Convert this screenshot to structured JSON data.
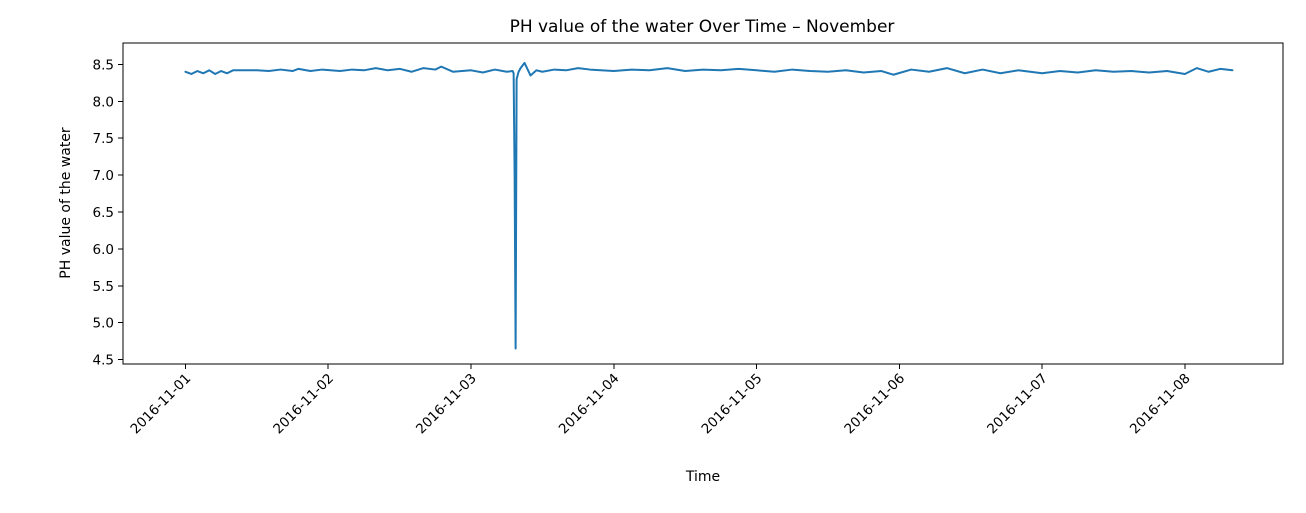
{
  "chart_data": {
    "type": "line",
    "title": "PH value of the water Over Time – November",
    "xlabel": "Time",
    "ylabel": "PH value of the water",
    "x_ticks": [
      "2016-11-01",
      "2016-11-02",
      "2016-11-03",
      "2016-11-04",
      "2016-11-05",
      "2016-11-06",
      "2016-11-07",
      "2016-11-08"
    ],
    "y_ticks": [
      "4.5",
      "5.0",
      "5.5",
      "6.0",
      "6.5",
      "7.0",
      "7.5",
      "8.0",
      "8.5"
    ],
    "xlim": [
      "2016-10-31 13:30",
      "2016-11-08 16:30"
    ],
    "ylim": [
      4.44,
      8.79
    ],
    "grid": false,
    "color": "#1f77b4",
    "series": [
      {
        "x": [
          "2016-11-01 00:00",
          "2016-11-01 01:00",
          "2016-11-01 02:00",
          "2016-11-01 03:00",
          "2016-11-01 04:00",
          "2016-11-01 05:00",
          "2016-11-01 06:00",
          "2016-11-01 07:00",
          "2016-11-01 08:00",
          "2016-11-01 10:00",
          "2016-11-01 12:00",
          "2016-11-01 14:00",
          "2016-11-01 16:00",
          "2016-11-01 18:00",
          "2016-11-01 19:00",
          "2016-11-01 21:00",
          "2016-11-01 23:00",
          "2016-11-02 02:00",
          "2016-11-02 04:00",
          "2016-11-02 06:00",
          "2016-11-02 08:00",
          "2016-11-02 10:00",
          "2016-11-02 12:00",
          "2016-11-02 14:00",
          "2016-11-02 16:00",
          "2016-11-02 18:00",
          "2016-11-02 19:00",
          "2016-11-02 21:00",
          "2016-11-03 00:00",
          "2016-11-03 02:00",
          "2016-11-03 04:00",
          "2016-11-03 06:00",
          "2016-11-03 07:00",
          "2016-11-03 07:10",
          "2016-11-03 07:20",
          "2016-11-03 07:30",
          "2016-11-03 07:40",
          "2016-11-03 08:00",
          "2016-11-03 08:20",
          "2016-11-03 09:00",
          "2016-11-03 10:00",
          "2016-11-03 11:00",
          "2016-11-03 12:00",
          "2016-11-03 14:00",
          "2016-11-03 16:00",
          "2016-11-03 18:00",
          "2016-11-03 20:00",
          "2016-11-04 00:00",
          "2016-11-04 03:00",
          "2016-11-04 06:00",
          "2016-11-04 09:00",
          "2016-11-04 12:00",
          "2016-11-04 15:00",
          "2016-11-04 18:00",
          "2016-11-04 21:00",
          "2016-11-05 00:00",
          "2016-11-05 03:00",
          "2016-11-05 06:00",
          "2016-11-05 09:00",
          "2016-11-05 12:00",
          "2016-11-05 15:00",
          "2016-11-05 18:00",
          "2016-11-05 21:00",
          "2016-11-05 23:00",
          "2016-11-06 02:00",
          "2016-11-06 05:00",
          "2016-11-06 08:00",
          "2016-11-06 11:00",
          "2016-11-06 14:00",
          "2016-11-06 17:00",
          "2016-11-06 20:00",
          "2016-11-07 00:00",
          "2016-11-07 03:00",
          "2016-11-07 06:00",
          "2016-11-07 09:00",
          "2016-11-07 12:00",
          "2016-11-07 15:00",
          "2016-11-07 18:00",
          "2016-11-07 21:00",
          "2016-11-08 00:00",
          "2016-11-08 02:00",
          "2016-11-08 04:00",
          "2016-11-08 06:00",
          "2016-11-08 08:00"
        ],
        "y": [
          8.4,
          8.37,
          8.41,
          8.38,
          8.42,
          8.37,
          8.41,
          8.38,
          8.42,
          8.42,
          8.42,
          8.41,
          8.43,
          8.41,
          8.44,
          8.41,
          8.43,
          8.41,
          8.43,
          8.42,
          8.45,
          8.42,
          8.44,
          8.4,
          8.45,
          8.43,
          8.47,
          8.4,
          8.42,
          8.39,
          8.43,
          8.4,
          8.41,
          8.38,
          7.0,
          4.65,
          8.3,
          8.4,
          8.45,
          8.52,
          8.35,
          8.42,
          8.4,
          8.43,
          8.42,
          8.45,
          8.43,
          8.41,
          8.43,
          8.42,
          8.45,
          8.41,
          8.43,
          8.42,
          8.44,
          8.42,
          8.4,
          8.43,
          8.41,
          8.4,
          8.42,
          8.39,
          8.41,
          8.36,
          8.43,
          8.4,
          8.45,
          8.38,
          8.43,
          8.38,
          8.42,
          8.38,
          8.41,
          8.39,
          8.42,
          8.4,
          8.41,
          8.39,
          8.41,
          8.37,
          8.45,
          8.4,
          8.44,
          8.42
        ]
      }
    ]
  }
}
